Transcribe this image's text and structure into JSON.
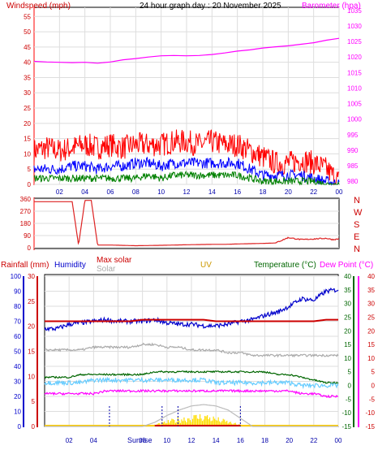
{
  "title": "24 hour graph day : 20 November 2025",
  "x_ticks": [
    "02",
    "04",
    "06",
    "08",
    "10",
    "12",
    "14",
    "16",
    "18",
    "20",
    "22",
    "00"
  ],
  "colors": {
    "wind": "#ff0000",
    "gust_line": "#ff0000",
    "avg_wind": "#0000ff",
    "wind_low": "#008000",
    "barometer": "#ff00ff",
    "direction": "#dd2222",
    "rain": "#cc0000",
    "humidity": "#0000cc",
    "max_solar": "#aaaaaa",
    "solar": "#ffdd00",
    "uv": "#cc9900",
    "temperature": "#006600",
    "dew_point": "#ff00ff",
    "cyan": "#66ccff",
    "grid": "#dddddd",
    "label_sunrise": "#0000aa"
  },
  "chart_data": [
    {
      "type": "line",
      "ylabel": "Windspeed (mph)",
      "ylabel_right": "Barometer (hpa)",
      "y_left_ticks": [
        "0",
        "5",
        "10",
        "15",
        "20",
        "25",
        "30",
        "35",
        "40",
        "45",
        "50",
        "55"
      ],
      "y_right_ticks": [
        "980",
        "985",
        "990",
        "995",
        "1000",
        "1005",
        "1010",
        "1015",
        "1020",
        "1025",
        "1030",
        "1035"
      ],
      "ylim": [
        0,
        58
      ],
      "ylim_right": [
        979,
        1036
      ],
      "x_hours": [
        0,
        1,
        2,
        3,
        4,
        5,
        6,
        7,
        8,
        9,
        10,
        11,
        12,
        13,
        14,
        15,
        16,
        17,
        18,
        19,
        20,
        21,
        22,
        23,
        24
      ],
      "series": [
        {
          "name": "Barometer (hpa)",
          "axis": "right",
          "values": [
            1018.6,
            1018.4,
            1018.3,
            1018.2,
            1018.3,
            1018.0,
            1018.4,
            1019.1,
            1019.5,
            1020.0,
            1020.4,
            1020.5,
            1020.4,
            1020.5,
            1020.8,
            1021.3,
            1021.9,
            1022.3,
            1022.9,
            1023.3,
            1023.6,
            1024.1,
            1024.6,
            1025.4,
            1026.0
          ]
        },
        {
          "name": "gust",
          "axis": "left",
          "values": [
            11,
            12,
            11,
            12,
            13,
            12,
            13,
            12,
            13,
            13,
            13,
            14,
            14,
            13,
            14,
            13,
            13,
            11,
            9,
            7,
            7,
            8,
            7,
            5,
            1
          ]
        },
        {
          "name": "average",
          "axis": "left",
          "values": [
            5,
            5,
            5,
            6,
            6,
            5,
            6,
            6,
            7,
            7,
            6,
            7,
            7,
            7,
            7,
            7,
            7,
            5,
            3,
            3,
            3,
            3,
            2,
            1,
            0
          ]
        },
        {
          "name": "low",
          "axis": "left",
          "values": [
            2,
            2,
            2,
            2,
            2,
            2,
            2,
            2,
            2,
            3,
            2,
            3,
            3,
            3,
            3,
            3,
            3,
            2,
            1,
            1,
            1,
            1,
            1,
            0,
            0
          ]
        }
      ]
    },
    {
      "type": "line",
      "ylabels_right": [
        "N",
        "W",
        "S",
        "E",
        "N"
      ],
      "y_left_ticks": [
        "0",
        "90",
        "180",
        "270",
        "360"
      ],
      "ylim": [
        0,
        360
      ],
      "x_hours": [
        0,
        1,
        2,
        3,
        3.5,
        4,
        4.5,
        5,
        6,
        8,
        10,
        12,
        14,
        15,
        16,
        17,
        18,
        19,
        20,
        21,
        22,
        23,
        23.5,
        24
      ],
      "series": [
        {
          "name": "direction",
          "values": [
            340,
            340,
            340,
            340,
            20,
            350,
            350,
            20,
            20,
            15,
            18,
            22,
            25,
            25,
            28,
            30,
            32,
            35,
            75,
            60,
            65,
            70,
            60,
            65
          ]
        }
      ]
    },
    {
      "type": "line",
      "labels": {
        "rainfall": "Rainfall (mm)",
        "humidity": "Humidity",
        "max_solar": "Max solar",
        "solar": "Solar",
        "uv": "UV",
        "temperature": "Temperature (°C)",
        "dew_point": "Dew Point (°C)"
      },
      "sunrise_label": "Sunrise",
      "humidity_ticks": [
        "0",
        "10",
        "20",
        "30",
        "40",
        "50",
        "60",
        "70",
        "80",
        "90",
        "100"
      ],
      "rain_ticks": [
        "0",
        "5",
        "10",
        "15",
        "20",
        "25",
        "30"
      ],
      "temp_ticks": [
        "-15",
        "-10",
        "-5",
        "0",
        "5",
        "10",
        "15",
        "20",
        "25",
        "30",
        "35",
        "40"
      ],
      "dew_ticks": [
        "-15",
        "-10",
        "-5",
        "0",
        "5",
        "10",
        "15",
        "20",
        "25",
        "30",
        "35",
        "40"
      ],
      "temp_ylim": [
        -15,
        40
      ],
      "humidity_ylim": [
        0,
        100
      ],
      "x_hours": [
        0,
        1,
        2,
        3,
        4,
        5,
        6,
        7,
        8,
        9,
        10,
        11,
        12,
        13,
        14,
        15,
        16,
        17,
        18,
        19,
        20,
        21,
        22,
        23,
        24
      ],
      "series": [
        {
          "name": "Humidity",
          "values": [
            65,
            65,
            68,
            69,
            70,
            71,
            70,
            70,
            70,
            71,
            69,
            68,
            68,
            67,
            67,
            68,
            70,
            71,
            74,
            76,
            80,
            85,
            84,
            90,
            91
          ]
        },
        {
          "name": "Rainfall (mm)",
          "values": [
            70,
            70,
            70,
            70,
            70,
            70,
            70,
            70,
            71,
            71,
            71,
            71,
            71,
            71,
            70,
            70,
            70,
            70,
            70,
            70,
            70,
            70,
            70,
            71,
            71
          ]
        },
        {
          "name": "grey_series",
          "values": [
            13,
            13,
            13,
            13,
            14,
            14,
            14,
            14,
            15,
            15,
            14,
            14,
            13,
            13,
            13,
            12,
            12,
            11,
            11,
            11,
            11,
            11,
            11,
            11,
            11
          ]
        },
        {
          "name": "Temperature (°C)",
          "values": [
            3,
            3,
            3,
            4,
            4,
            4,
            4,
            4,
            4,
            5,
            5,
            5,
            5,
            5,
            5,
            5,
            5,
            5,
            5,
            4,
            4,
            3,
            2,
            1,
            1
          ]
        },
        {
          "name": "cyan_series",
          "values": [
            1,
            1,
            1,
            1,
            2,
            2,
            2,
            2,
            2,
            2,
            2,
            2,
            2,
            2,
            1,
            1,
            1,
            1,
            1,
            1,
            1,
            0,
            0,
            0,
            0
          ]
        },
        {
          "name": "Dew Point (°C)",
          "values": [
            -3,
            -3,
            -3,
            -3,
            -3,
            -2,
            -2,
            -2,
            -2,
            -2,
            -2,
            -2,
            -2,
            -2,
            -2,
            -2,
            -2,
            -2,
            -2,
            -2,
            -2,
            -3,
            -3,
            -4,
            -4
          ]
        },
        {
          "name": "Max solar",
          "values": [
            0,
            0,
            0,
            0,
            0,
            0,
            0,
            0,
            0,
            1.5,
            4,
            6,
            7.5,
            8,
            7.5,
            6,
            3,
            0,
            0,
            0,
            0,
            0,
            0,
            0,
            0
          ]
        }
      ],
      "solar_bars": [
        0,
        0,
        0,
        0,
        0,
        0,
        0,
        0,
        0,
        0.5,
        1.5,
        2.5,
        3,
        3.5,
        2.5,
        1.5,
        0.5,
        0,
        0,
        0,
        0,
        0,
        0,
        0,
        0
      ]
    }
  ]
}
